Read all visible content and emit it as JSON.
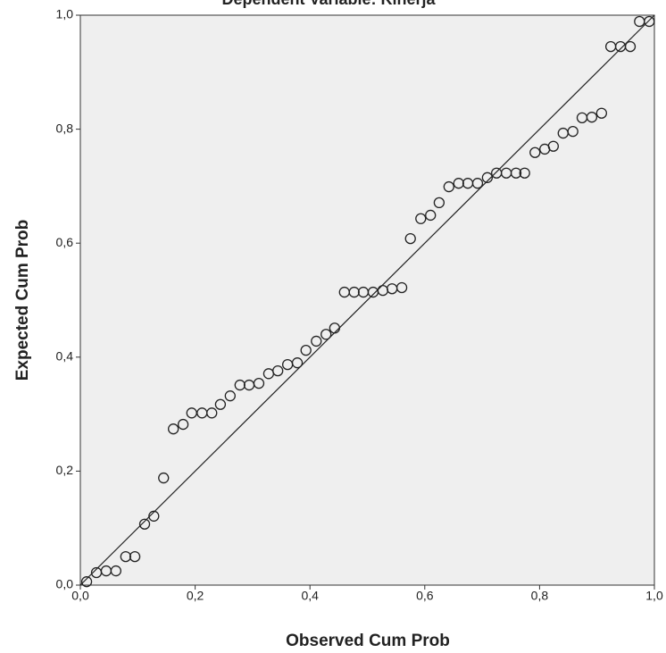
{
  "chart_data": {
    "type": "scatter",
    "title": "Dependent Variable: Kinerja",
    "x_label": "Observed Cum Prob",
    "y_label": "Expected Cum Prob",
    "xlim": [
      0,
      1
    ],
    "ylim": [
      0,
      1
    ],
    "xticks": [
      {
        "value": 0,
        "label": "0,0"
      },
      {
        "value": 0.2,
        "label": "0,2"
      },
      {
        "value": 0.4,
        "label": "0,4"
      },
      {
        "value": 0.6,
        "label": "0,6"
      },
      {
        "value": 0.8,
        "label": "0,8"
      },
      {
        "value": 1,
        "label": "1,0"
      }
    ],
    "yticks": [
      {
        "value": 0,
        "label": "0,0"
      },
      {
        "value": 0.2,
        "label": "0,2"
      },
      {
        "value": 0.4,
        "label": "0,4"
      },
      {
        "value": 0.6,
        "label": "0,6"
      },
      {
        "value": 0.8,
        "label": "0,8"
      },
      {
        "value": 1,
        "label": "1,0"
      }
    ],
    "color": "#222222",
    "x": [
      0.011,
      0.028,
      0.045,
      0.062,
      0.079,
      0.095,
      0.112,
      0.128,
      0.145,
      0.162,
      0.179,
      0.194,
      0.212,
      0.229,
      0.244,
      0.261,
      0.278,
      0.294,
      0.311,
      0.328,
      0.344,
      0.361,
      0.378,
      0.393,
      0.411,
      0.428,
      0.443,
      0.46,
      0.477,
      0.493,
      0.51,
      0.527,
      0.543,
      0.56,
      0.575,
      0.593,
      0.61,
      0.625,
      0.642,
      0.659,
      0.675,
      0.692,
      0.709,
      0.725,
      0.742,
      0.759,
      0.774,
      0.792,
      0.809,
      0.824,
      0.841,
      0.858,
      0.874,
      0.891,
      0.908,
      0.924,
      0.941,
      0.958,
      0.974,
      0.991
    ],
    "values": [
      0.006,
      0.022,
      0.025,
      0.025,
      0.05,
      0.05,
      0.107,
      0.121,
      0.188,
      0.274,
      0.282,
      0.302,
      0.302,
      0.302,
      0.317,
      0.332,
      0.351,
      0.351,
      0.354,
      0.371,
      0.376,
      0.387,
      0.39,
      0.412,
      0.428,
      0.44,
      0.451,
      0.514,
      0.514,
      0.514,
      0.514,
      0.517,
      0.52,
      0.522,
      0.608,
      0.643,
      0.649,
      0.671,
      0.699,
      0.705,
      0.705,
      0.705,
      0.715,
      0.723,
      0.723,
      0.723,
      0.723,
      0.759,
      0.765,
      0.77,
      0.793,
      0.796,
      0.82,
      0.821,
      0.828,
      0.945,
      0.945,
      0.945,
      0.989,
      0.989
    ]
  }
}
